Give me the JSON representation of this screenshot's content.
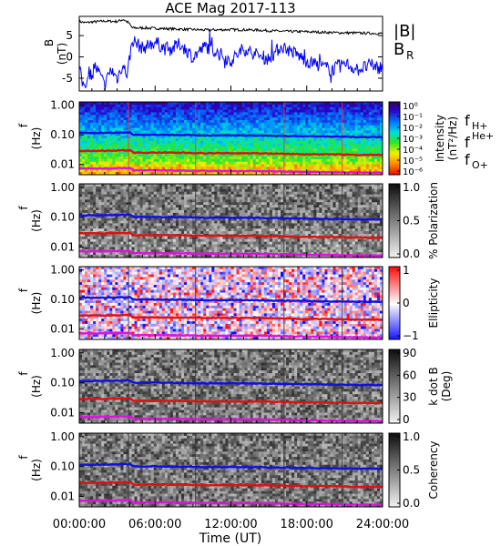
{
  "chart_data": {
    "title": "ACE Mag 2017-113",
    "type": "multi-panel",
    "xaxis": {
      "label": "Time (UT)",
      "ticks": [
        "00:00:00",
        "06:00:00",
        "12:00:00",
        "18:00:00",
        "24:00:00"
      ],
      "range_hours": [
        0,
        24
      ]
    },
    "panels": [
      {
        "type": "line",
        "ylabel": [
          "B",
          "(nT)"
        ],
        "ylim": [
          -8,
          9.5
        ],
        "yticks": [
          "5",
          "0",
          "-5"
        ],
        "ytick_values": [
          5,
          0,
          -5
        ],
        "series": [
          {
            "name": "|B|",
            "color": "#000000",
            "x": [
              0,
              0.5,
              1,
              2,
              3,
              3.5,
              3.9,
              4.2,
              5,
              6,
              8,
              10,
              12,
              14,
              16,
              18,
              20,
              22,
              24
            ],
            "y": [
              8.3,
              8.0,
              8.2,
              8.4,
              8.3,
              8.8,
              8.0,
              6.8,
              6.8,
              6.7,
              6.5,
              6.3,
              6.4,
              6.3,
              6.0,
              5.9,
              5.7,
              5.6,
              5.5
            ]
          },
          {
            "name": "B_R",
            "color": "#0000ff",
            "x": [
              0,
              0.3,
              0.8,
              1.2,
              1.6,
              2,
              2.5,
              3,
              3.4,
              3.8,
              4.2,
              5,
              6,
              7,
              8,
              9,
              10,
              11,
              12,
              13,
              14,
              15,
              16,
              17,
              18,
              19,
              20,
              21,
              22,
              23,
              24
            ],
            "y": [
              -3,
              -6.5,
              -5,
              -2,
              -4,
              -6.8,
              -3,
              -5,
              -2,
              -4,
              4,
              2,
              3.5,
              1.5,
              3,
              0,
              2.5,
              1,
              -1,
              2,
              0.5,
              -0.5,
              2.5,
              1,
              -1,
              -2,
              -3,
              -1.5,
              -3,
              -2,
              -2.5
            ]
          }
        ],
        "legend": [
          {
            "label": "|B|",
            "color": "#000000"
          },
          {
            "label": "B",
            "sub": "R",
            "color": "#0000ff"
          }
        ]
      },
      {
        "type": "spectrogram",
        "colormap": "rainbow",
        "ylabel": [
          "f",
          "(Hz)"
        ],
        "yticks": [
          "1.00",
          "0.10",
          "0.01"
        ],
        "ytick_values": [
          1.0,
          0.1,
          0.01
        ],
        "colorbar_label": "Intensity",
        "colorbar_units": "(nT²/Hz)",
        "colorbar_ticks": [
          "10⁰",
          "10⁻¹",
          "10⁻²",
          "10⁻³",
          "10⁻⁴",
          "10⁻⁵",
          "10⁻⁶"
        ],
        "colorbar_tick_values": [
          1,
          0.1,
          0.01,
          0.001,
          0.0001,
          1e-05,
          1e-06
        ],
        "legend": [
          {
            "label": "f",
            "sub": "H+",
            "color": "#2020c0"
          },
          {
            "label": "f",
            "sup": "He+",
            "color": "#e02020"
          },
          {
            "label": "f",
            "sub": "O+",
            "color": "#e020e0"
          }
        ]
      },
      {
        "type": "spectrogram",
        "colormap": "grey",
        "ylabel": [
          "f",
          "(Hz)"
        ],
        "yticks": [
          "1.00",
          "0.10",
          "0.01"
        ],
        "ytick_values": [
          1.0,
          0.1,
          0.01
        ],
        "colorbar_label": "% Polarization",
        "colorbar_ticks": [
          "1.0",
          "0.5",
          "0.0"
        ],
        "colorbar_tick_values": [
          1.0,
          0.5,
          0.0
        ]
      },
      {
        "type": "spectrogram",
        "colormap": "bwr",
        "ylabel": [
          "f",
          "(Hz)"
        ],
        "yticks": [
          "1.00",
          "0.10",
          "0.01"
        ],
        "ytick_values": [
          1.0,
          0.1,
          0.01
        ],
        "colorbar_label": "Ellipticity",
        "colorbar_ticks": [
          "1",
          "0",
          "−1"
        ],
        "colorbar_tick_values": [
          1,
          0,
          -1
        ]
      },
      {
        "type": "spectrogram",
        "colormap": "grey",
        "ylabel": [
          "f",
          "(Hz)"
        ],
        "yticks": [
          "1.00",
          "0.10",
          "0.01"
        ],
        "ytick_values": [
          1.0,
          0.1,
          0.01
        ],
        "colorbar_label": "k dot B",
        "colorbar_units": "(Deg)",
        "colorbar_ticks": [
          "90",
          "60",
          "30",
          "0"
        ],
        "colorbar_tick_values": [
          90,
          60,
          30,
          0
        ]
      },
      {
        "type": "spectrogram",
        "colormap": "grey",
        "ylabel": [
          "f",
          "(Hz)"
        ],
        "yticks": [
          "1.00",
          "0.10",
          "0.01"
        ],
        "ytick_values": [
          1.0,
          0.1,
          0.01
        ],
        "colorbar_label": "Coherency",
        "colorbar_ticks": [
          "1.0",
          "0.5",
          "0.0"
        ],
        "colorbar_tick_values": [
          1.0,
          0.5,
          0.0
        ]
      }
    ],
    "gyrofrequency_lines": {
      "x": [
        0,
        2,
        3.5,
        4,
        4.3,
        6,
        8,
        10,
        12,
        14,
        16,
        18,
        20,
        22,
        24
      ],
      "H+": [
        0.115,
        0.117,
        0.12,
        0.12,
        0.101,
        0.101,
        0.099,
        0.096,
        0.097,
        0.095,
        0.092,
        0.09,
        0.087,
        0.085,
        0.084
      ],
      "He+": [
        0.029,
        0.029,
        0.03,
        0.03,
        0.025,
        0.025,
        0.025,
        0.024,
        0.024,
        0.024,
        0.023,
        0.022,
        0.022,
        0.021,
        0.021
      ],
      "O+": [
        0.0072,
        0.0073,
        0.0075,
        0.0075,
        0.0063,
        0.0063,
        0.0062,
        0.006,
        0.006,
        0.006,
        0.0058,
        0.0056,
        0.0055,
        0.0053,
        0.0053
      ]
    }
  }
}
